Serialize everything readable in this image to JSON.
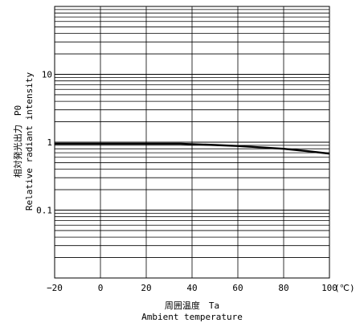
{
  "chart_data": {
    "type": "line",
    "ylabel_jp": "相対発光出力　P0",
    "ylabel_en": "Relative radiant intensity",
    "xlabel_jp": "周囲温度　Ta",
    "xlabel_en": "Ambient temperature",
    "x_unit": "(℃)",
    "xlim": [
      -20,
      100
    ],
    "ylim": [
      0.01,
      100
    ],
    "yscale": "log",
    "grid": true,
    "x_ticks": [
      -20,
      0,
      20,
      40,
      60,
      80,
      100
    ],
    "x_tick_labels": [
      "−20",
      "0",
      "20",
      "40",
      "60",
      "80",
      "100"
    ],
    "y_tick_labels": [
      {
        "value": 10,
        "label": "10"
      },
      {
        "value": 1,
        "label": "1"
      },
      {
        "value": 0.1,
        "label": "0.1"
      }
    ],
    "series": [
      {
        "x": [
          -20,
          0,
          20,
          35,
          50,
          60,
          70,
          80,
          90,
          100
        ],
        "y": [
          0.95,
          0.95,
          0.95,
          0.95,
          0.91,
          0.88,
          0.84,
          0.8,
          0.74,
          0.68
        ]
      }
    ]
  }
}
